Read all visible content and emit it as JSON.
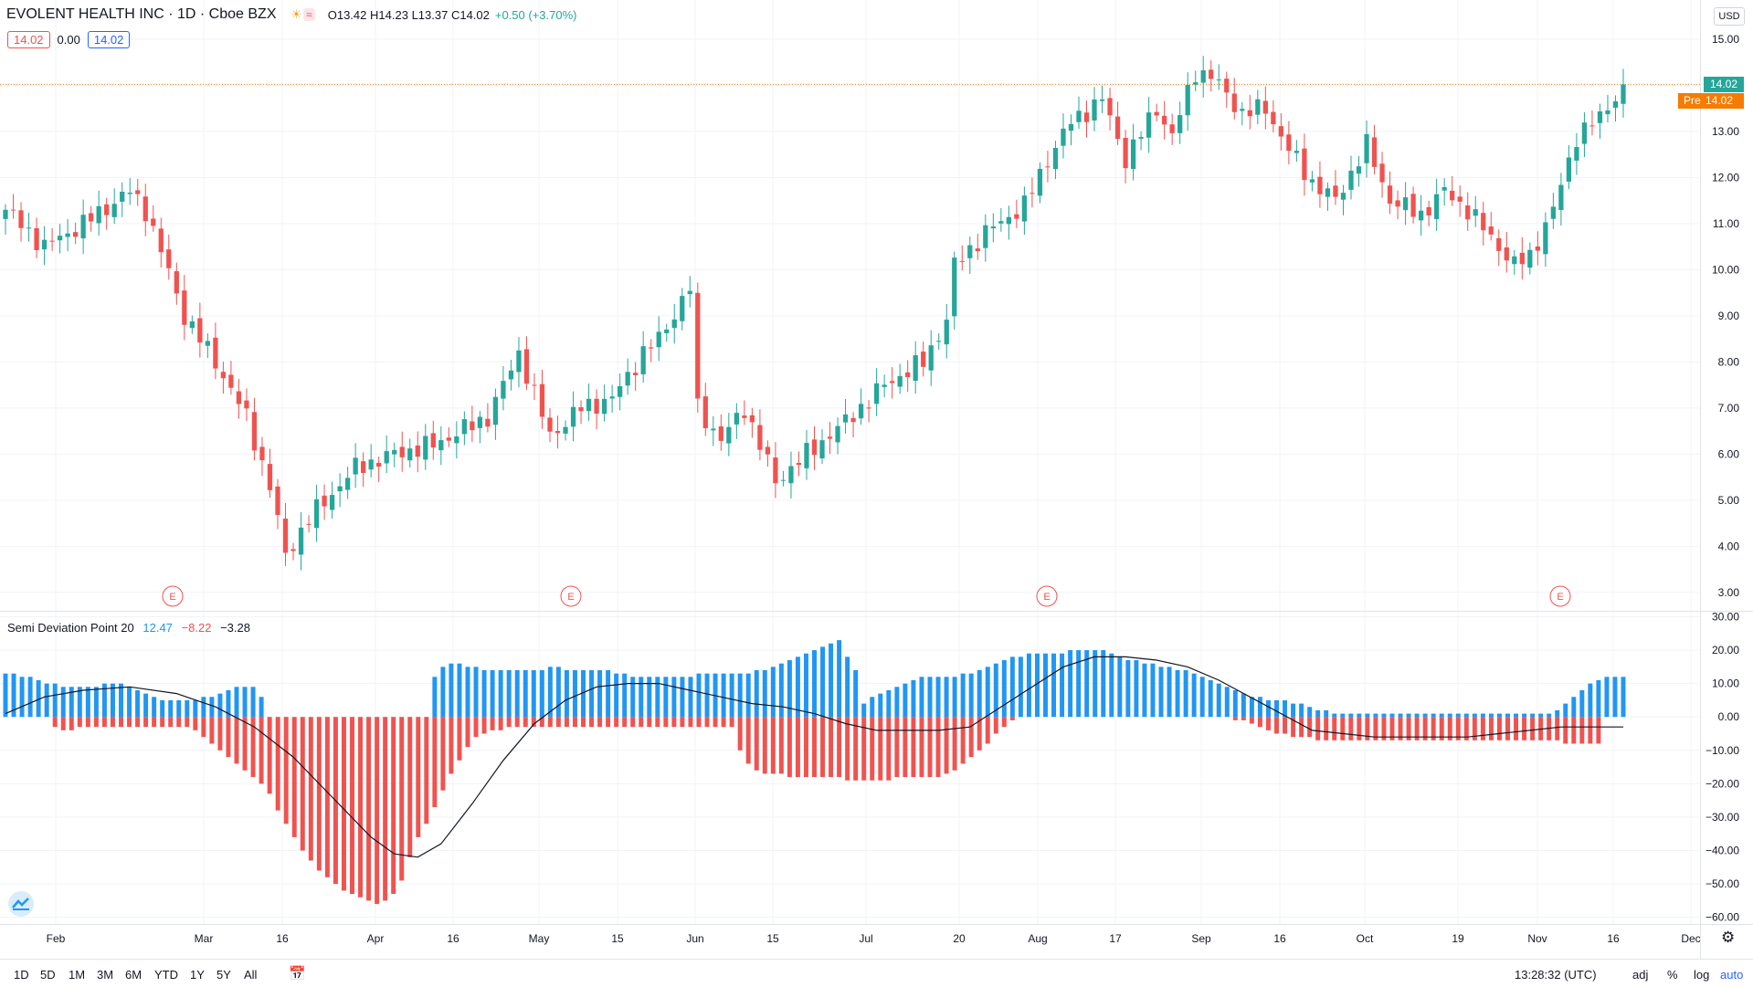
{
  "header": {
    "title": "EVOLENT HEALTH INC · 1D · Cboe BZX",
    "open": "O13.42",
    "high": "H14.23",
    "low": "L13.37",
    "close": "C14.02",
    "change": "+0.50 (+3.70%)"
  },
  "badges": {
    "bid": "14.02",
    "spread": "0.00",
    "ask": "14.02"
  },
  "currency": "USD",
  "price_tag": "14.02",
  "pre_tag": {
    "label": "Pre",
    "value": "14.02"
  },
  "indicator": {
    "name": "Semi Deviation Point 20",
    "v1": "12.47",
    "v2": "−8.22",
    "v3": "−3.28"
  },
  "earnings_marker": "E",
  "toolbar": {
    "ranges": [
      "1D",
      "5D",
      "1M",
      "3M",
      "6M",
      "YTD",
      "1Y",
      "5Y",
      "All"
    ],
    "time": "13:28:32 (UTC)",
    "adj": "adj",
    "percent": "%",
    "log": "log",
    "auto": "auto"
  },
  "colors": {
    "up": "#26a69a",
    "down": "#ef5350",
    "pos_hist": "#2196f3",
    "neg_hist": "#ef5350",
    "line": "#131722"
  },
  "chart_data": [
    {
      "type": "candlestick",
      "title": "EVOLENT HEALTH INC · 1D · Cboe BZX",
      "y_ticks": [
        "3.00",
        "4.00",
        "5.00",
        "6.00",
        "7.00",
        "8.00",
        "9.00",
        "10.00",
        "11.00",
        "12.00",
        "13.00",
        "14.00",
        "15.00"
      ],
      "ylim": [
        2.6,
        15.85
      ],
      "x_ticks": [
        "Feb",
        "Mar",
        "16",
        "Apr",
        "16",
        "May",
        "15",
        "Jun",
        "15",
        "Jul",
        "20",
        "Aug",
        "17",
        "Sep",
        "16",
        "Oct",
        "19",
        "Nov",
        "16",
        "Dec"
      ],
      "last_price": 14.02,
      "close_path": [
        {
          "x": 0,
          "y": 11.3
        },
        {
          "x": 5,
          "y": 10.5
        },
        {
          "x": 10,
          "y": 11.0
        },
        {
          "x": 16,
          "y": 11.7
        },
        {
          "x": 18,
          "y": 11.3
        },
        {
          "x": 20,
          "y": 10.4
        },
        {
          "x": 23,
          "y": 9.0
        },
        {
          "x": 27,
          "y": 8.0
        },
        {
          "x": 31,
          "y": 6.8
        },
        {
          "x": 34,
          "y": 5.3
        },
        {
          "x": 36,
          "y": 3.8
        },
        {
          "x": 39,
          "y": 4.6
        },
        {
          "x": 45,
          "y": 5.7
        },
        {
          "x": 50,
          "y": 6.0
        },
        {
          "x": 55,
          "y": 6.2
        },
        {
          "x": 62,
          "y": 6.8
        },
        {
          "x": 66,
          "y": 8.2
        },
        {
          "x": 70,
          "y": 6.4
        },
        {
          "x": 74,
          "y": 7.0
        },
        {
          "x": 78,
          "y": 7.2
        },
        {
          "x": 82,
          "y": 8.2
        },
        {
          "x": 84,
          "y": 8.5
        },
        {
          "x": 88,
          "y": 9.6
        },
        {
          "x": 89,
          "y": 7.0
        },
        {
          "x": 92,
          "y": 6.3
        },
        {
          "x": 95,
          "y": 7.0
        },
        {
          "x": 99,
          "y": 5.4
        },
        {
          "x": 103,
          "y": 6.0
        },
        {
          "x": 108,
          "y": 6.7
        },
        {
          "x": 113,
          "y": 7.5
        },
        {
          "x": 118,
          "y": 8.0
        },
        {
          "x": 121,
          "y": 8.9
        },
        {
          "x": 122,
          "y": 10.1
        },
        {
          "x": 126,
          "y": 10.8
        },
        {
          "x": 131,
          "y": 11.4
        },
        {
          "x": 134,
          "y": 12.4
        },
        {
          "x": 137,
          "y": 13.2
        },
        {
          "x": 141,
          "y": 13.7
        },
        {
          "x": 144,
          "y": 12.4
        },
        {
          "x": 148,
          "y": 13.5
        },
        {
          "x": 150,
          "y": 12.9
        },
        {
          "x": 153,
          "y": 14.3
        },
        {
          "x": 155,
          "y": 14.2
        },
        {
          "x": 159,
          "y": 13.4
        },
        {
          "x": 162,
          "y": 13.5
        },
        {
          "x": 165,
          "y": 12.6
        },
        {
          "x": 168,
          "y": 11.9
        },
        {
          "x": 171,
          "y": 11.5
        },
        {
          "x": 175,
          "y": 12.7
        },
        {
          "x": 178,
          "y": 11.5
        },
        {
          "x": 182,
          "y": 11.2
        },
        {
          "x": 185,
          "y": 11.7
        },
        {
          "x": 188,
          "y": 11.3
        },
        {
          "x": 191,
          "y": 10.7
        },
        {
          "x": 194,
          "y": 10.1
        },
        {
          "x": 196,
          "y": 10.3
        },
        {
          "x": 199,
          "y": 11.3
        },
        {
          "x": 202,
          "y": 12.9
        },
        {
          "x": 205,
          "y": 13.3
        },
        {
          "x": 208,
          "y": 14.02
        }
      ],
      "earnings_markers": [
        "E",
        "E",
        "E",
        "E"
      ]
    },
    {
      "type": "bar",
      "title": "Semi Deviation Point 20",
      "y_ticks": [
        "30.00",
        "20.00",
        "10.00",
        "0.00",
        "−10.00",
        "−20.00",
        "−30.00",
        "−40.00",
        "−50.00",
        "−60.00"
      ],
      "ylim": [
        -62,
        31.5
      ],
      "series": [
        {
          "name": "12.47",
          "color": "#2196f3",
          "values": [
            13,
            13,
            12,
            12,
            11,
            10,
            10,
            9,
            9,
            9,
            9,
            9,
            10,
            10,
            10,
            9,
            8,
            7,
            6,
            5,
            5,
            5,
            5,
            5,
            6,
            6,
            7,
            8,
            9,
            9,
            9,
            6,
            0,
            0,
            0,
            0,
            0,
            0,
            0,
            0,
            0,
            0,
            0,
            0,
            0,
            0,
            0,
            0,
            0,
            0,
            0,
            0,
            12,
            15,
            16,
            16,
            15,
            15,
            14,
            14,
            14,
            14,
            14,
            14,
            14,
            14,
            15,
            15,
            14,
            14,
            14,
            14,
            14,
            14,
            13,
            13,
            12,
            12,
            12,
            12,
            12,
            12,
            12,
            12,
            13,
            13,
            13,
            13,
            13,
            13,
            13,
            14,
            14,
            15,
            16,
            17,
            18,
            19,
            20,
            21,
            22,
            23,
            18,
            14,
            4,
            6,
            7,
            8,
            9,
            10,
            11,
            12,
            12,
            12,
            12,
            12,
            13,
            13,
            14,
            15,
            16,
            17,
            18,
            18,
            19,
            19,
            19,
            19,
            19,
            20,
            20,
            20,
            20,
            20,
            19,
            18,
            17,
            17,
            16,
            16,
            15,
            15,
            14,
            14,
            13,
            12,
            11,
            10,
            9,
            8,
            7,
            6,
            6,
            5,
            5,
            5,
            4,
            4,
            3,
            2,
            2,
            1,
            1,
            1,
            1,
            1,
            1,
            1,
            1,
            1,
            1,
            1,
            1,
            1,
            1,
            1,
            1,
            1,
            1,
            1,
            1,
            1,
            1,
            1,
            1,
            1,
            1,
            1,
            2,
            4,
            6,
            8,
            10,
            11,
            12,
            12,
            12
          ]
        },
        {
          "name": "−8.22",
          "color": "#ef5350",
          "values": [
            0,
            0,
            0,
            0,
            0,
            0,
            -3,
            -4,
            -4,
            -3,
            -3,
            -3,
            -3,
            -3,
            -3,
            -3,
            -3,
            -3,
            -3,
            -3,
            -3,
            -3,
            -3,
            -4,
            -6,
            -8,
            -10,
            -12,
            -14,
            -16,
            -18,
            -20,
            -23,
            -28,
            -32,
            -36,
            -40,
            -43,
            -46,
            -48,
            -50,
            -52,
            -53,
            -54,
            -55,
            -56,
            -55,
            -53,
            -49,
            -42,
            -36,
            -32,
            -27,
            -22,
            -17,
            -13,
            -9,
            -6,
            -5,
            -4,
            -4,
            -3,
            -3,
            -3,
            -3,
            -3,
            -3,
            -3,
            -3,
            -3,
            -3,
            -3,
            -3,
            -3,
            -3,
            -3,
            -3,
            -3,
            -3,
            -3,
            -3,
            -3,
            -3,
            -3,
            -3,
            -3,
            -3,
            -3,
            -3,
            -10,
            -14,
            -16,
            -17,
            -17,
            -17,
            -18,
            -18,
            -18,
            -18,
            -18,
            -18,
            -18,
            -19,
            -19,
            -19,
            -19,
            -19,
            -19,
            -18,
            -18,
            -18,
            -18,
            -18,
            -18,
            -17,
            -16,
            -14,
            -12,
            -10,
            -8,
            -5,
            -3,
            -1,
            0,
            0,
            0,
            0,
            0,
            0,
            0,
            0,
            0,
            0,
            0,
            0,
            0,
            0,
            0,
            0,
            0,
            0,
            0,
            0,
            0,
            0,
            0,
            0,
            0,
            0,
            -1,
            -1,
            -2,
            -3,
            -4,
            -5,
            -5,
            -6,
            -6,
            -6,
            -7,
            -7,
            -7,
            -7,
            -7,
            -7,
            -7,
            -7,
            -7,
            -7,
            -7,
            -7,
            -7,
            -7,
            -7,
            -7,
            -7,
            -7,
            -7,
            -7,
            -7,
            -7,
            -7,
            -7,
            -7,
            -7,
            -7,
            -7,
            -7,
            -7,
            -8,
            -8,
            -8,
            -8,
            -8
          ]
        },
        {
          "name": "−3.28",
          "color": "#131722",
          "points": [
            [
              0,
              1
            ],
            [
              5,
              6
            ],
            [
              10,
              8
            ],
            [
              16,
              9
            ],
            [
              22,
              7
            ],
            [
              27,
              3
            ],
            [
              32,
              -3
            ],
            [
              37,
              -12
            ],
            [
              42,
              -24
            ],
            [
              47,
              -36
            ],
            [
              50,
              -41
            ],
            [
              53,
              -42
            ],
            [
              56,
              -38
            ],
            [
              60,
              -26
            ],
            [
              64,
              -13
            ],
            [
              68,
              -2
            ],
            [
              72,
              5
            ],
            [
              76,
              9
            ],
            [
              80,
              10
            ],
            [
              84,
              10
            ],
            [
              88,
              8
            ],
            [
              92,
              6
            ],
            [
              96,
              4
            ],
            [
              100,
              3
            ],
            [
              104,
              1
            ],
            [
              108,
              -2
            ],
            [
              112,
              -4
            ],
            [
              116,
              -4
            ],
            [
              120,
              -4
            ],
            [
              124,
              -3
            ],
            [
              128,
              3
            ],
            [
              132,
              9
            ],
            [
              136,
              15
            ],
            [
              140,
              18
            ],
            [
              144,
              18
            ],
            [
              148,
              17
            ],
            [
              152,
              15
            ],
            [
              156,
              11
            ],
            [
              160,
              6
            ],
            [
              164,
              1
            ],
            [
              168,
              -4
            ],
            [
              172,
              -5
            ],
            [
              176,
              -6
            ],
            [
              180,
              -6
            ],
            [
              184,
              -6
            ],
            [
              188,
              -6
            ],
            [
              192,
              -5
            ],
            [
              196,
              -4
            ],
            [
              200,
              -3
            ],
            [
              204,
              -3
            ],
            [
              208,
              -3
            ]
          ]
        }
      ]
    }
  ]
}
